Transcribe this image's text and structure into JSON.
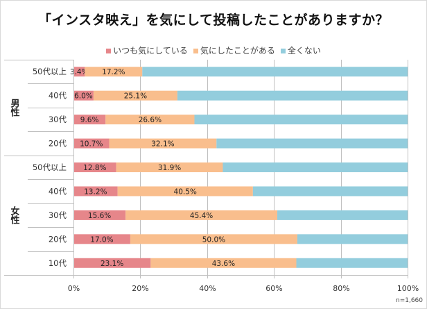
{
  "chart_data": {
    "type": "bar",
    "orientation": "horizontal",
    "stacked": "percent",
    "title": "「インスタ映え」を気にして投稿したことがありますか？",
    "xlabel": "",
    "ylabel": "",
    "xlim": [
      0,
      100
    ],
    "x_ticks": [
      "0%",
      "20%",
      "40%",
      "60%",
      "80%",
      "100%"
    ],
    "grid": true,
    "legend_position": "top",
    "groups": [
      {
        "label": "男性",
        "categories": [
          "50代以上",
          "40代",
          "30代",
          "20代"
        ]
      },
      {
        "label": "女性",
        "categories": [
          "50代以上",
          "40代",
          "30代",
          "20代",
          "10代"
        ]
      }
    ],
    "categories": [
      "男性 50代以上",
      "男性 40代",
      "男性 30代",
      "男性 20代",
      "女性 50代以上",
      "女性 40代",
      "女性 30代",
      "女性 20代",
      "女性 10代"
    ],
    "series": [
      {
        "name": "いつも気にしている",
        "color": "#e6868a",
        "values": [
          3.4,
          6.0,
          9.6,
          10.7,
          12.8,
          13.2,
          15.6,
          17.0,
          23.1
        ],
        "labels": [
          "3.4%",
          "6.0%",
          "9.6%",
          "10.7%",
          "12.8%",
          "13.2%",
          "15.6%",
          "17.0%",
          "23.1%"
        ]
      },
      {
        "name": "気にしたことがある",
        "color": "#f9be8d",
        "values": [
          17.2,
          25.1,
          26.6,
          32.1,
          31.9,
          40.5,
          45.4,
          50.0,
          43.6
        ],
        "labels": [
          "17.2%",
          "25.1%",
          "26.6%",
          "32.1%",
          "31.9%",
          "40.5%",
          "45.4%",
          "50.0%",
          "43.6%"
        ]
      },
      {
        "name": "全くない",
        "color": "#93cddd",
        "values": [
          79.4,
          68.9,
          63.8,
          57.2,
          55.3,
          46.3,
          39.0,
          33.0,
          33.3
        ],
        "labels": []
      }
    ],
    "annotation": "n=1,660"
  }
}
